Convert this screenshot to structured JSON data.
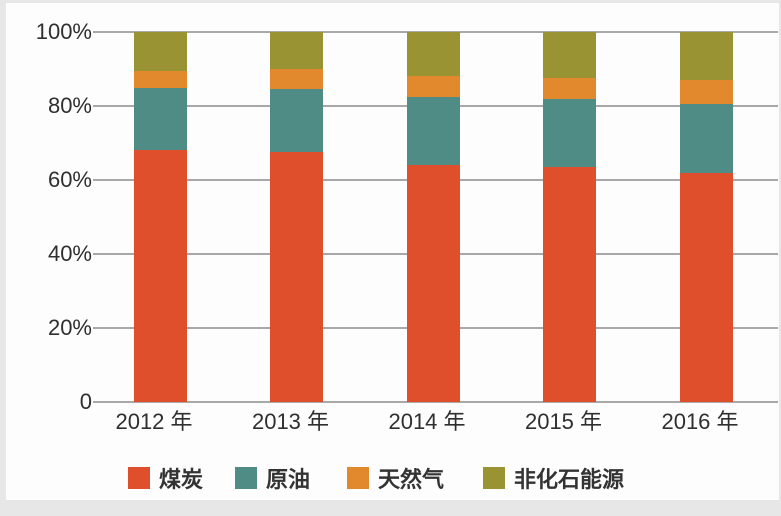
{
  "chart_data": {
    "type": "bar",
    "variant": "stacked-percent",
    "title": "",
    "xlabel": "",
    "ylabel": "",
    "categories": [
      "2012 年",
      "2013 年",
      "2014 年",
      "2015 年",
      "2016 年"
    ],
    "series": [
      {
        "name": "煤炭",
        "color": "#e04f2c",
        "values": [
          68,
          67.5,
          64,
          63.5,
          62
        ]
      },
      {
        "name": "原油",
        "color": "#4e8c85",
        "values": [
          17,
          17,
          18.5,
          18.5,
          18.5
        ]
      },
      {
        "name": "天然气",
        "color": "#e2892e",
        "values": [
          4.5,
          5.5,
          5.5,
          5.5,
          6.5
        ]
      },
      {
        "name": "非化石能源",
        "color": "#9a9334",
        "values": [
          10.5,
          10,
          12,
          12.5,
          13
        ]
      }
    ],
    "y_axis": {
      "tick_labels": [
        "100%",
        "80%",
        "60%",
        "40%",
        "20%",
        "0"
      ],
      "tick_values": [
        100,
        80,
        60,
        40,
        20,
        0
      ],
      "range": [
        0,
        100
      ],
      "grid": true
    },
    "legend_position": "bottom",
    "colors": {
      "background": "#fdfdfd",
      "page_edge": "#e7e7e7",
      "gridline": "#a8a8a8",
      "text": "#2f2f2f"
    }
  }
}
